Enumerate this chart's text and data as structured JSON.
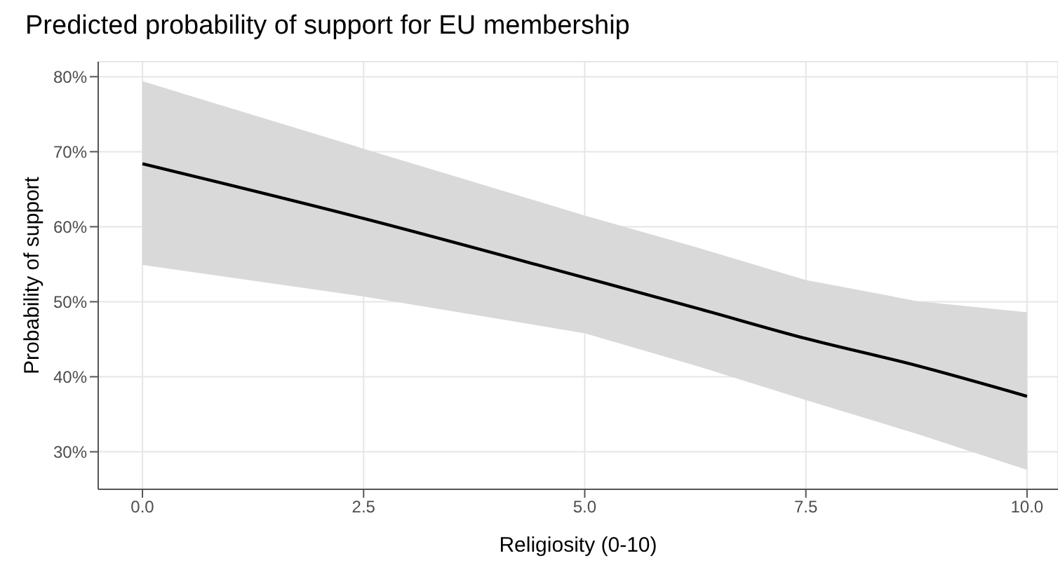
{
  "chart_data": {
    "type": "line",
    "title": "Predicted probability of support for EU membership",
    "xlabel": "Religiosity  (0-10)",
    "ylabel": "Probability of support",
    "x": [
      0,
      2.5,
      5,
      6.25,
      7.5,
      8.75,
      10
    ],
    "series": [
      {
        "color": "#000000",
        "values": [
          68.4,
          61.1,
          53.2,
          49.2,
          45.1,
          41.5,
          37.4
        ],
        "lower": [
          54.9,
          50.7,
          45.8,
          41.5,
          36.9,
          32.4,
          27.6
        ],
        "upper": [
          79.4,
          70.4,
          61.5,
          57.3,
          52.9,
          50.1,
          48.6
        ]
      }
    ],
    "xlim": [
      -0.5,
      10.35
    ],
    "xticks": [
      {
        "value": 0,
        "label": "0.0"
      },
      {
        "value": 2.5,
        "label": "2.5"
      },
      {
        "value": 5,
        "label": "5.0"
      },
      {
        "value": 7.5,
        "label": "7.5"
      },
      {
        "value": 10,
        "label": "10.0"
      }
    ],
    "ylim": [
      25,
      82
    ],
    "yticks": [
      {
        "value": 30,
        "label": "30%"
      },
      {
        "value": 40,
        "label": "40%"
      },
      {
        "value": 50,
        "label": "50%"
      },
      {
        "value": 60,
        "label": "60%"
      },
      {
        "value": 70,
        "label": "70%"
      },
      {
        "value": 80,
        "label": "80%"
      }
    ],
    "grid": true,
    "marker": "none",
    "line_style": "solid"
  }
}
